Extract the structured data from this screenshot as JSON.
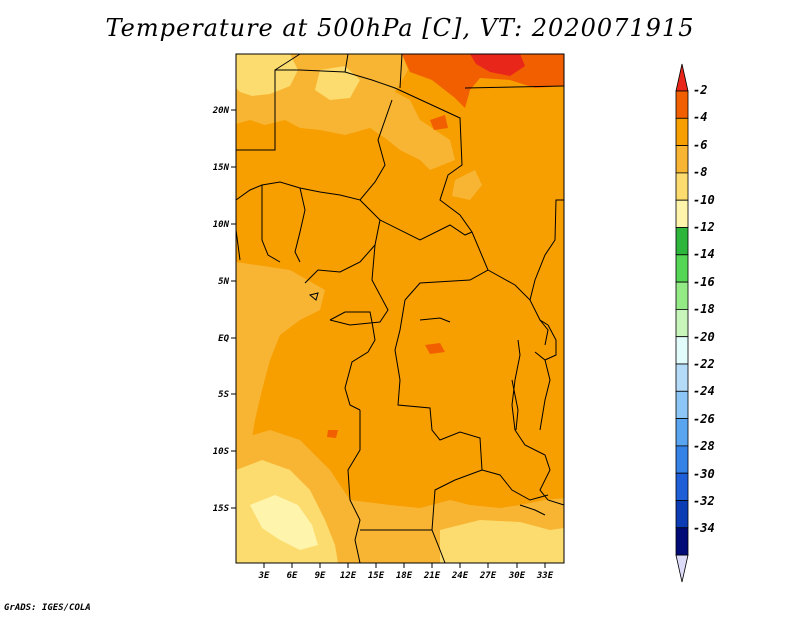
{
  "title": "Temperature at 500hPa [C], VT: 2020071915",
  "footer": "GrADS: IGES/COLA",
  "map": {
    "y_ticks": [
      "20N",
      "15N",
      "10N",
      "5N",
      "EQ",
      "5S",
      "10S",
      "15S"
    ],
    "x_ticks": [
      "3E",
      "6E",
      "9E",
      "12E",
      "15E",
      "18E",
      "21E",
      "24E",
      "27E",
      "30E",
      "33E"
    ]
  },
  "colorbar": {
    "labels": [
      "-2",
      "-4",
      "-6",
      "-8",
      "-10",
      "-12",
      "-14",
      "-16",
      "-18",
      "-20",
      "-22",
      "-24",
      "-26",
      "-28",
      "-30",
      "-32",
      "-34"
    ],
    "colors": [
      "#e8261a",
      "#f25f00",
      "#f79e00",
      "#f8b533",
      "#fcdc6e",
      "#fff4ac",
      "#2db53c",
      "#55d654",
      "#94ea85",
      "#c8f5b9",
      "#e2fbfb",
      "#b4dcf9",
      "#8cc6f7",
      "#5aa5ef",
      "#3683e8",
      "#1e5fd8",
      "#0c3cb4",
      "#000b78",
      "#dcdcf8"
    ]
  }
}
